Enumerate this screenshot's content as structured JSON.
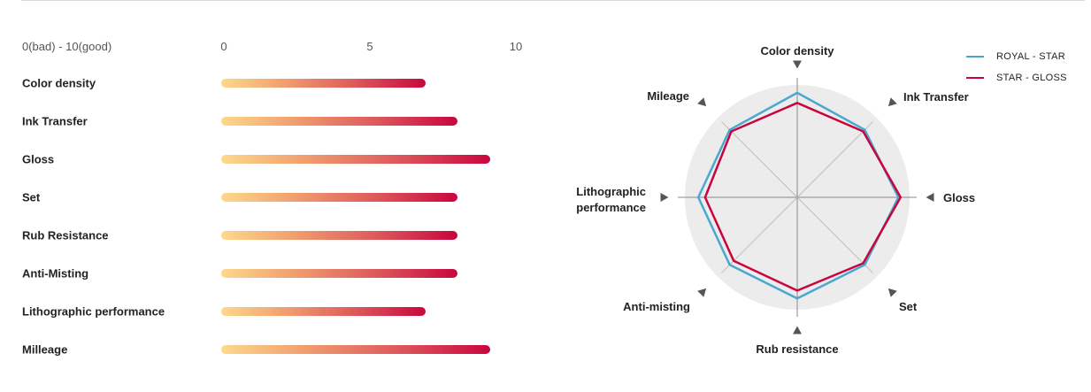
{
  "chart_data": [
    {
      "type": "bar",
      "orientation": "horizontal",
      "scale_caption": "0(bad) - 10(good)",
      "xlim": [
        0,
        10
      ],
      "ticks": [
        "0",
        "5",
        "10"
      ],
      "categories": [
        "Color density",
        "Ink Transfer",
        "Gloss",
        "Set",
        "Rub Resistance",
        "Anti-Misting",
        "Lithographic performance",
        "Milleage"
      ],
      "values": [
        7.0,
        8.1,
        9.2,
        8.1,
        8.1,
        8.1,
        7.0,
        9.2
      ],
      "colors": {
        "gradient_start": "#fdd98b",
        "gradient_end": "#c8063e"
      }
    },
    {
      "type": "radar",
      "axes": [
        "Color density",
        "Ink Transfer",
        "Gloss",
        "Set",
        "Rub resistance",
        "Anti-misting",
        "Lithographic performance",
        "Mileage"
      ],
      "axis_label_lines": [
        [
          "Color density"
        ],
        [
          "Ink Transfer"
        ],
        [
          "Gloss"
        ],
        [
          "Set"
        ],
        [
          "Rub resistance"
        ],
        [
          "Anti-misting"
        ],
        [
          "Lithographic",
          "performance"
        ],
        [
          "Mileage"
        ]
      ],
      "rmax": 10,
      "series": [
        {
          "name": "ROYAL - STAR",
          "color": "#4aa8cf",
          "values": [
            9.3,
            8.5,
            9.0,
            8.5,
            9.0,
            8.5,
            8.8,
            8.5
          ]
        },
        {
          "name": "STAR - GLOSS",
          "color": "#c8063e",
          "values": [
            8.4,
            8.3,
            9.2,
            8.3,
            8.3,
            8.0,
            8.2,
            8.3
          ]
        }
      ],
      "legend": {
        "position": "top-right"
      }
    }
  ]
}
